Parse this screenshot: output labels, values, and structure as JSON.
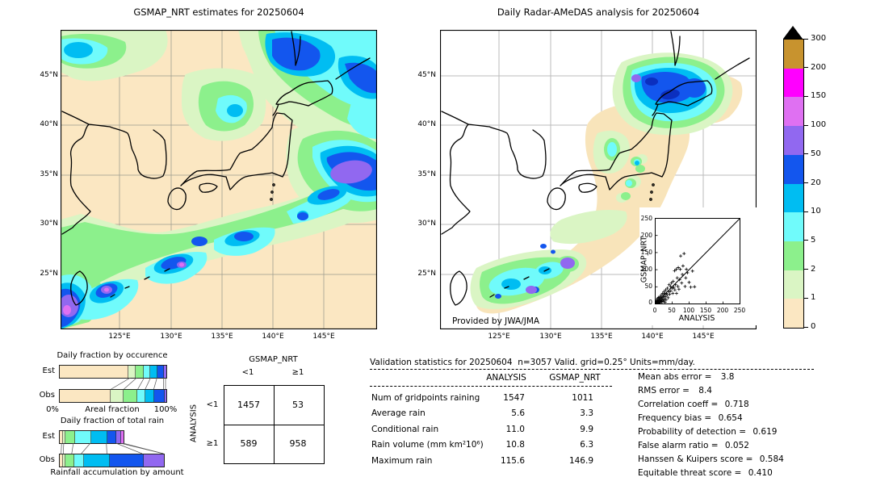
{
  "left_map": {
    "title": "GSMAP_NRT estimates for 20250604",
    "x_ticks": [
      "125°E",
      "130°E",
      "135°E",
      "140°E",
      "145°E"
    ],
    "y_ticks": [
      "45°N",
      "40°N",
      "35°N",
      "30°N",
      "25°N"
    ]
  },
  "right_map": {
    "title": "Daily Radar-AMeDAS analysis for 20250604",
    "x_ticks": [
      "125°E",
      "130°E",
      "135°E",
      "140°E",
      "145°E"
    ],
    "y_ticks": [
      "45°N",
      "40°N",
      "35°N",
      "30°N",
      "25°N"
    ],
    "credit": "Provided by JWA/JMA"
  },
  "colorbar": {
    "tick_labels": [
      "300",
      "200",
      "150",
      "100",
      "50",
      "20",
      "10",
      "5",
      "2",
      "1",
      "0"
    ],
    "colors_top_to_bottom": [
      "#c8932e",
      "#ff00ff",
      "#df70f2",
      "#9168f0",
      "#1356ee",
      "#00bdf2",
      "#70fbfb",
      "#8cf08c",
      "#daf5c4",
      "#fbe7c2"
    ],
    "overflow_color": "#000000"
  },
  "metrics": [
    {
      "label": "Mean abs error =",
      "value": "3.8"
    },
    {
      "label": "RMS error =",
      "value": "8.4"
    },
    {
      "label": "Correlation coeff =",
      "value": "0.718"
    },
    {
      "label": "Frequency bias =",
      "value": "0.654"
    },
    {
      "label": "Probability of detection =",
      "value": "0.619"
    },
    {
      "label": "False alarm ratio =",
      "value": "0.052"
    },
    {
      "label": "Hanssen & Kuipers score =",
      "value": "0.584"
    },
    {
      "label": "Equitable threat score =",
      "value": "0.410"
    }
  ],
  "chart_data": [
    {
      "type": "bar",
      "subtype": "stacked-horizontal-fraction",
      "title": "Daily fraction by occurence",
      "categories": [
        "Est",
        "Obs"
      ],
      "bins_mm_day": [
        "0-1",
        "1-2",
        "2-5",
        "5-10",
        "10-20",
        "20-50",
        "50-100"
      ],
      "colors": [
        "#fbe7c2",
        "#daf5c4",
        "#8cf08c",
        "#70fbfb",
        "#00bdf2",
        "#1356ee",
        "#9168f0"
      ],
      "series": [
        {
          "name": "Est",
          "values": [
            0.67,
            0.06,
            0.07,
            0.06,
            0.06,
            0.06,
            0.02
          ]
        },
        {
          "name": "Obs",
          "values": [
            0.49,
            0.12,
            0.13,
            0.07,
            0.08,
            0.09,
            0.02
          ]
        }
      ],
      "xlabel": "Areal fraction",
      "x_left_label": "0%",
      "x_right_label": "100%",
      "xlim": [
        0,
        1
      ],
      "row_labels": [
        "Est",
        "Obs"
      ]
    },
    {
      "type": "bar",
      "subtype": "stacked-horizontal-fraction",
      "title": "Daily fraction of total rain",
      "categories": [
        "Est",
        "Obs"
      ],
      "bins_mm_day": [
        "0-1",
        "1-2",
        "2-5",
        "5-10",
        "10-20",
        "20-50",
        "50-100",
        "100-150"
      ],
      "colors": [
        "#fbe7c2",
        "#daf5c4",
        "#8cf08c",
        "#70fbfb",
        "#00bdf2",
        "#1356ee",
        "#9168f0",
        "#df70f2"
      ],
      "series": [
        {
          "name": "Est",
          "values": [
            0.025,
            0.02,
            0.09,
            0.16,
            0.15,
            0.09,
            0.04,
            0.025
          ]
        },
        {
          "name": "Obs",
          "values": [
            0.02,
            0.02,
            0.08,
            0.09,
            0.24,
            0.33,
            0.2,
            0
          ]
        }
      ],
      "xlabel": "Rainfall accumulation by amount",
      "row_labels": [
        "Est",
        "Obs"
      ]
    },
    {
      "type": "table",
      "name": "contingency-table",
      "col_group": "GSMAP_NRT",
      "row_group": "ANALYSIS",
      "col_labels": [
        "<1",
        "≥1"
      ],
      "row_labels": [
        "<1",
        "≥1"
      ],
      "values": [
        [
          "1457",
          "53"
        ],
        [
          "589",
          "958"
        ]
      ]
    },
    {
      "type": "table",
      "name": "validation-statistics",
      "title": "Validation statistics for 20250604  n=3057 Valid. grid=0.25° Units=mm/day.",
      "col_headers": [
        "ANALYSIS",
        "GSMAP_NRT"
      ],
      "rows": [
        {
          "label": "Num of gridpoints raining",
          "analysis": "1547",
          "gsmap": "1011"
        },
        {
          "label": "Average rain",
          "analysis": "5.6",
          "gsmap": "3.3"
        },
        {
          "label": "Conditional rain",
          "analysis": "11.0",
          "gsmap": "9.9"
        },
        {
          "label": "Rain volume (mm km²10⁶)",
          "analysis": "10.8",
          "gsmap": "6.3"
        },
        {
          "label": "Maximum rain",
          "analysis": "115.6",
          "gsmap": "146.9"
        }
      ]
    },
    {
      "type": "scatter",
      "name": "analysis-vs-gsmap-inset",
      "xlabel": "ANALYSIS",
      "ylabel": "GSMAP_NRT",
      "x_ticks": [
        "0",
        "50",
        "100",
        "150",
        "200",
        "250"
      ],
      "y_ticks": [
        "250",
        "200",
        "150",
        "100",
        "50",
        "0"
      ],
      "xlim": [
        0,
        250
      ],
      "ylim": [
        0,
        250
      ],
      "diagonal": true,
      "marker": "+",
      "points": [
        [
          1,
          2
        ],
        [
          2,
          1
        ],
        [
          2,
          6
        ],
        [
          3,
          3
        ],
        [
          4,
          1
        ],
        [
          4,
          9
        ],
        [
          5,
          4
        ],
        [
          5,
          13
        ],
        [
          6,
          2
        ],
        [
          7,
          7
        ],
        [
          8,
          3
        ],
        [
          8,
          16
        ],
        [
          9,
          10
        ],
        [
          10,
          5
        ],
        [
          10,
          19
        ],
        [
          11,
          2
        ],
        [
          12,
          12
        ],
        [
          13,
          7
        ],
        [
          14,
          21
        ],
        [
          15,
          4
        ],
        [
          15,
          10
        ],
        [
          16,
          17
        ],
        [
          17,
          8
        ],
        [
          18,
          26
        ],
        [
          19,
          13
        ],
        [
          20,
          6
        ],
        [
          21,
          18
        ],
        [
          22,
          31
        ],
        [
          23,
          11
        ],
        [
          24,
          22
        ],
        [
          25,
          8
        ],
        [
          26,
          36
        ],
        [
          27,
          15
        ],
        [
          28,
          29
        ],
        [
          29,
          5
        ],
        [
          30,
          21
        ],
        [
          31,
          41
        ],
        [
          32,
          12
        ],
        [
          33,
          31
        ],
        [
          35,
          26
        ],
        [
          36,
          46
        ],
        [
          38,
          18
        ],
        [
          40,
          36
        ],
        [
          41,
          56
        ],
        [
          43,
          28
        ],
        [
          45,
          51
        ],
        [
          46,
          38
        ],
        [
          48,
          61
        ],
        [
          50,
          46
        ],
        [
          52,
          31
        ],
        [
          53,
          66
        ],
        [
          55,
          48
        ],
        [
          57,
          97
        ],
        [
          58,
          41
        ],
        [
          60,
          56
        ],
        [
          62,
          101
        ],
        [
          63,
          31
        ],
        [
          65,
          76
        ],
        [
          67,
          51
        ],
        [
          68,
          106
        ],
        [
          70,
          43
        ],
        [
          72,
          71
        ],
        [
          74,
          101
        ],
        [
          75,
          140
        ],
        [
          78,
          61
        ],
        [
          80,
          86
        ],
        [
          82,
          111
        ],
        [
          85,
          147
        ],
        [
          88,
          51
        ],
        [
          90,
          76
        ],
        [
          92,
          101
        ],
        [
          95,
          91
        ],
        [
          100,
          63
        ],
        [
          105,
          49
        ],
        [
          110,
          96
        ],
        [
          116,
          50
        ]
      ]
    },
    {
      "type": "colorbar",
      "name": "precipitation-scale",
      "units": "mm/day",
      "levels": [
        0,
        1,
        2,
        5,
        10,
        20,
        50,
        100,
        150,
        200,
        300
      ],
      "colors_bottom_to_top": [
        "#fbe7c2",
        "#daf5c4",
        "#8cf08c",
        "#70fbfb",
        "#00bdf2",
        "#1356ee",
        "#9168f0",
        "#df70f2",
        "#ff00ff",
        "#c8932e"
      ],
      "overflow_marker": "black-triangle"
    }
  ]
}
